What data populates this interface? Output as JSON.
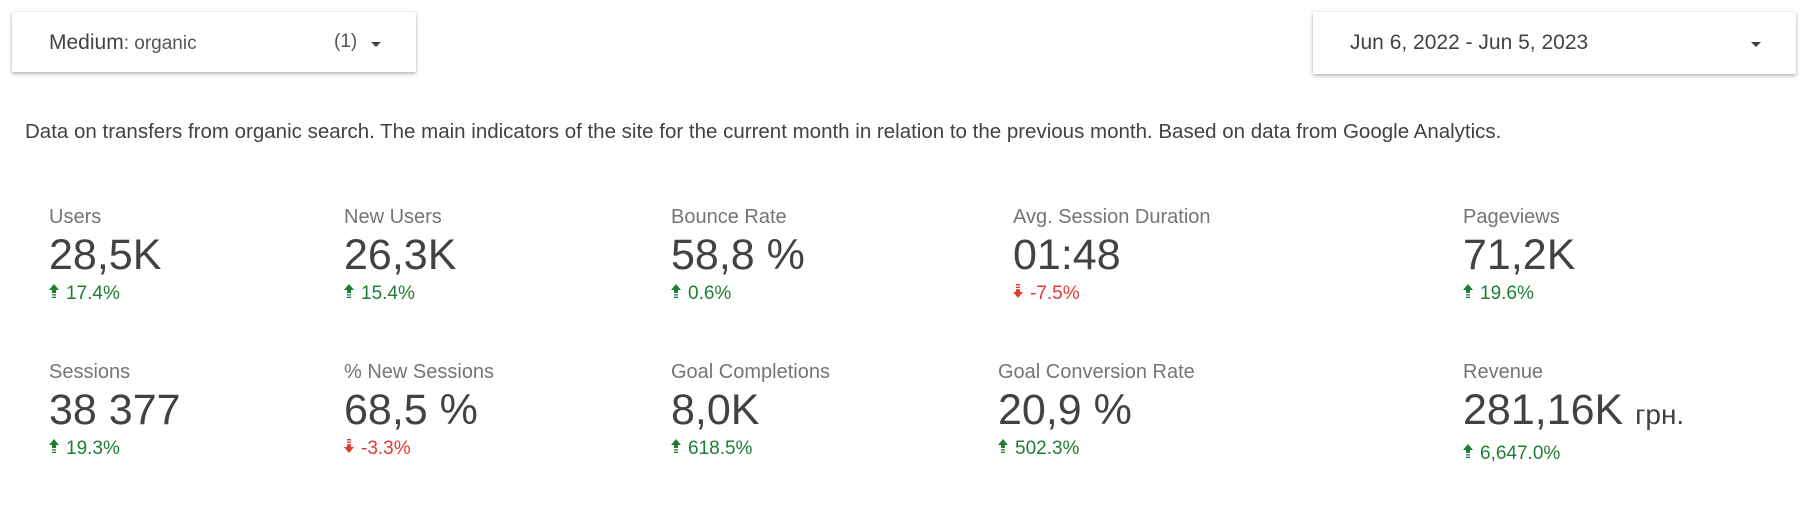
{
  "filter": {
    "label": "Medium",
    "value": ": organic",
    "count": "(1)"
  },
  "date_range": {
    "value": "Jun 6, 2022 - Jun 5, 2023"
  },
  "description": "Data on transfers from organic search. The main indicators of the site for the current month in relation to the previous month. Based on data from Google Analytics.",
  "colors": {
    "positive": "#1e7e34",
    "negative": "#e53935"
  },
  "metrics": [
    {
      "label": "Users",
      "value": "28,5K",
      "unit": "",
      "delta": "17.4%",
      "direction": "up"
    },
    {
      "label": "New Users",
      "value": "26,3K",
      "unit": "",
      "delta": "15.4%",
      "direction": "up"
    },
    {
      "label": "Bounce Rate",
      "value": "58,8 %",
      "unit": "",
      "delta": "0.6%",
      "direction": "up"
    },
    {
      "label": "Avg. Session Duration",
      "value": "01:48",
      "unit": "",
      "delta": "-7.5%",
      "direction": "down"
    },
    {
      "label": "Pageviews",
      "value": "71,2K",
      "unit": "",
      "delta": "19.6%",
      "direction": "up"
    },
    {
      "label": "Sessions",
      "value": "38 377",
      "unit": "",
      "delta": "19.3%",
      "direction": "up"
    },
    {
      "label": "% New Sessions",
      "value": "68,5 %",
      "unit": "",
      "delta": "-3.3%",
      "direction": "down"
    },
    {
      "label": "Goal Completions",
      "value": "8,0K",
      "unit": "",
      "delta": "618.5%",
      "direction": "up"
    },
    {
      "label": "Goal Conversion Rate",
      "value": "20,9 %",
      "unit": "",
      "delta": "502.3%",
      "direction": "up"
    },
    {
      "label": "Revenue",
      "value": "281,16K",
      "unit": "грн.",
      "delta": "6,647.0%",
      "direction": "up"
    }
  ]
}
